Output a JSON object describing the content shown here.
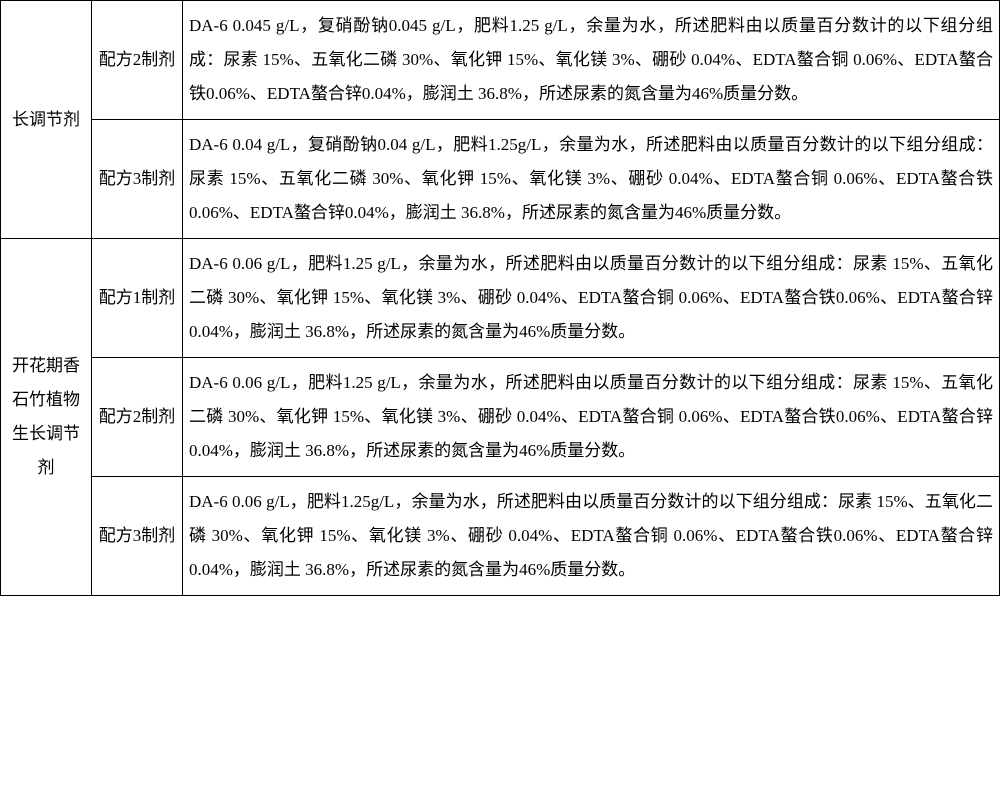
{
  "table": {
    "section1": {
      "label": "长调节剂",
      "rows": [
        {
          "label": "配方2制剂",
          "text": "DA-6 0.045 g/L，复硝酚钠0.045 g/L，肥料1.25 g/L，余量为水，所述肥料由以质量百分数计的以下组分组成：尿素 15%、五氧化二磷 30%、氧化钾 15%、氧化镁 3%、硼砂 0.04%、EDTA螯合铜 0.06%、EDTA螯合铁0.06%、EDTA螯合锌0.04%，膨润土 36.8%，所述尿素的氮含量为46%质量分数。"
        },
        {
          "label": "配方3制剂",
          "text": "DA-6 0.04 g/L，复硝酚钠0.04 g/L，肥料1.25g/L，余量为水，所述肥料由以质量百分数计的以下组分组成：尿素 15%、五氧化二磷 30%、氧化钾 15%、氧化镁 3%、硼砂 0.04%、EDTA螯合铜 0.06%、EDTA螯合铁0.06%、EDTA螯合锌0.04%，膨润土 36.8%，所述尿素的氮含量为46%质量分数。"
        }
      ]
    },
    "section2": {
      "label": "开花期香石竹植物生长调节剂",
      "rows": [
        {
          "label": "配方1制剂",
          "text": "DA-6 0.06 g/L，肥料1.25 g/L，余量为水，所述肥料由以质量百分数计的以下组分组成：尿素 15%、五氧化二磷 30%、氧化钾 15%、氧化镁 3%、硼砂 0.04%、EDTA螯合铜 0.06%、EDTA螯合铁0.06%、EDTA螯合锌0.04%，膨润土 36.8%，所述尿素的氮含量为46%质量分数。"
        },
        {
          "label": "配方2制剂",
          "text": "DA-6 0.06 g/L，肥料1.25 g/L，余量为水，所述肥料由以质量百分数计的以下组分组成：尿素 15%、五氧化二磷 30%、氧化钾 15%、氧化镁 3%、硼砂 0.04%、EDTA螯合铜 0.06%、EDTA螯合铁0.06%、EDTA螯合锌0.04%，膨润土 36.8%，所述尿素的氮含量为46%质量分数。"
        },
        {
          "label": "配方3制剂",
          "text": "DA-6 0.06 g/L，肥料1.25g/L，余量为水，所述肥料由以质量百分数计的以下组分组成：尿素 15%、五氧化二磷 30%、氧化钾 15%、氧化镁 3%、硼砂 0.04%、EDTA螯合铜 0.06%、EDTA螯合铁0.06%、EDTA螯合锌0.04%，膨润土 36.8%，所述尿素的氮含量为46%质量分数。"
        }
      ]
    }
  },
  "colors": {
    "border": "#000000",
    "text": "#000000",
    "background": "#ffffff"
  },
  "font_size": 17,
  "line_height": 2.0
}
